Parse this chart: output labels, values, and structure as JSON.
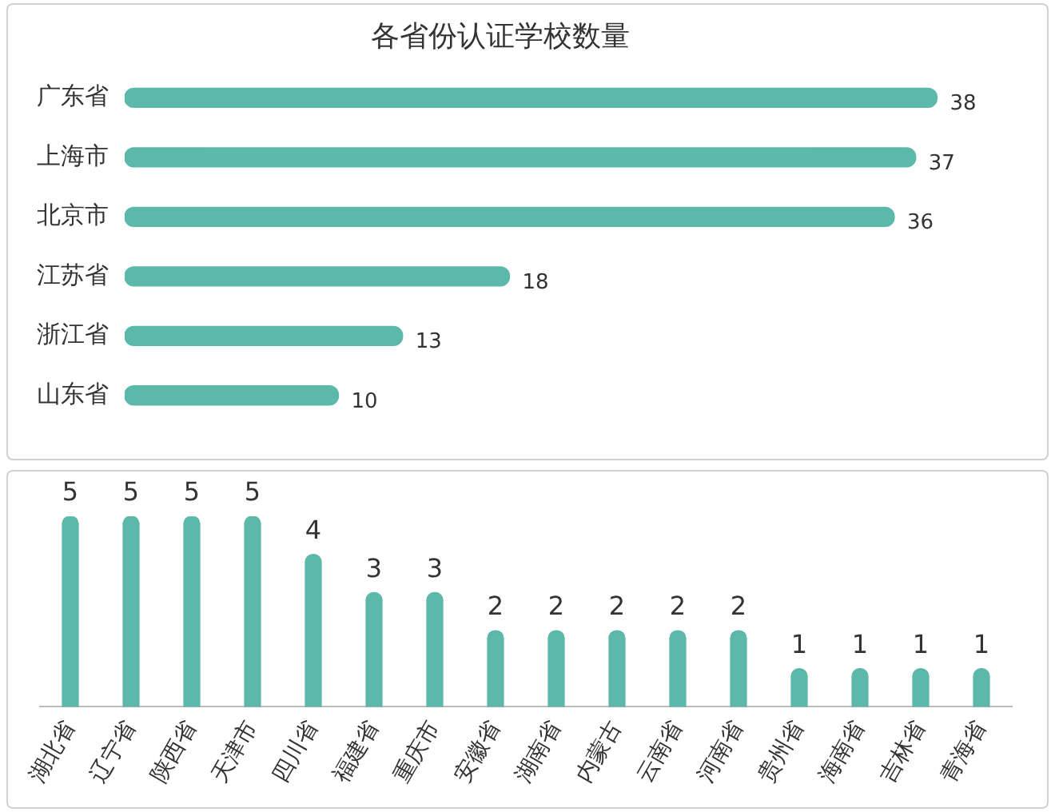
{
  "chart_data": [
    {
      "type": "bar",
      "title": "各省份认证学校数量",
      "orientation": "horizontal",
      "categories": [
        "广东省",
        "上海市",
        "北京市",
        "江苏省",
        "浙江省",
        "山东省"
      ],
      "values": [
        38,
        37,
        36,
        18,
        13,
        10
      ],
      "color": "#5cb8a8",
      "data_labels": true,
      "legend": false,
      "tick_labels": "y"
    },
    {
      "type": "bar",
      "categories": [
        "湖北省",
        "辽宁省",
        "陕西省",
        "天津市",
        "四川省",
        "福建省",
        "重庆市",
        "安徽省",
        "湖南省",
        "内蒙古",
        "云南省",
        "河南省",
        "贵州省",
        "海南省",
        "吉林省",
        "青海省"
      ],
      "values": [
        5,
        5,
        5,
        5,
        4,
        3,
        3,
        2,
        2,
        2,
        2,
        2,
        1,
        1,
        1,
        1
      ],
      "color": "#5cb8a8",
      "data_labels": true,
      "legend": false,
      "tick_labels": "x"
    }
  ]
}
